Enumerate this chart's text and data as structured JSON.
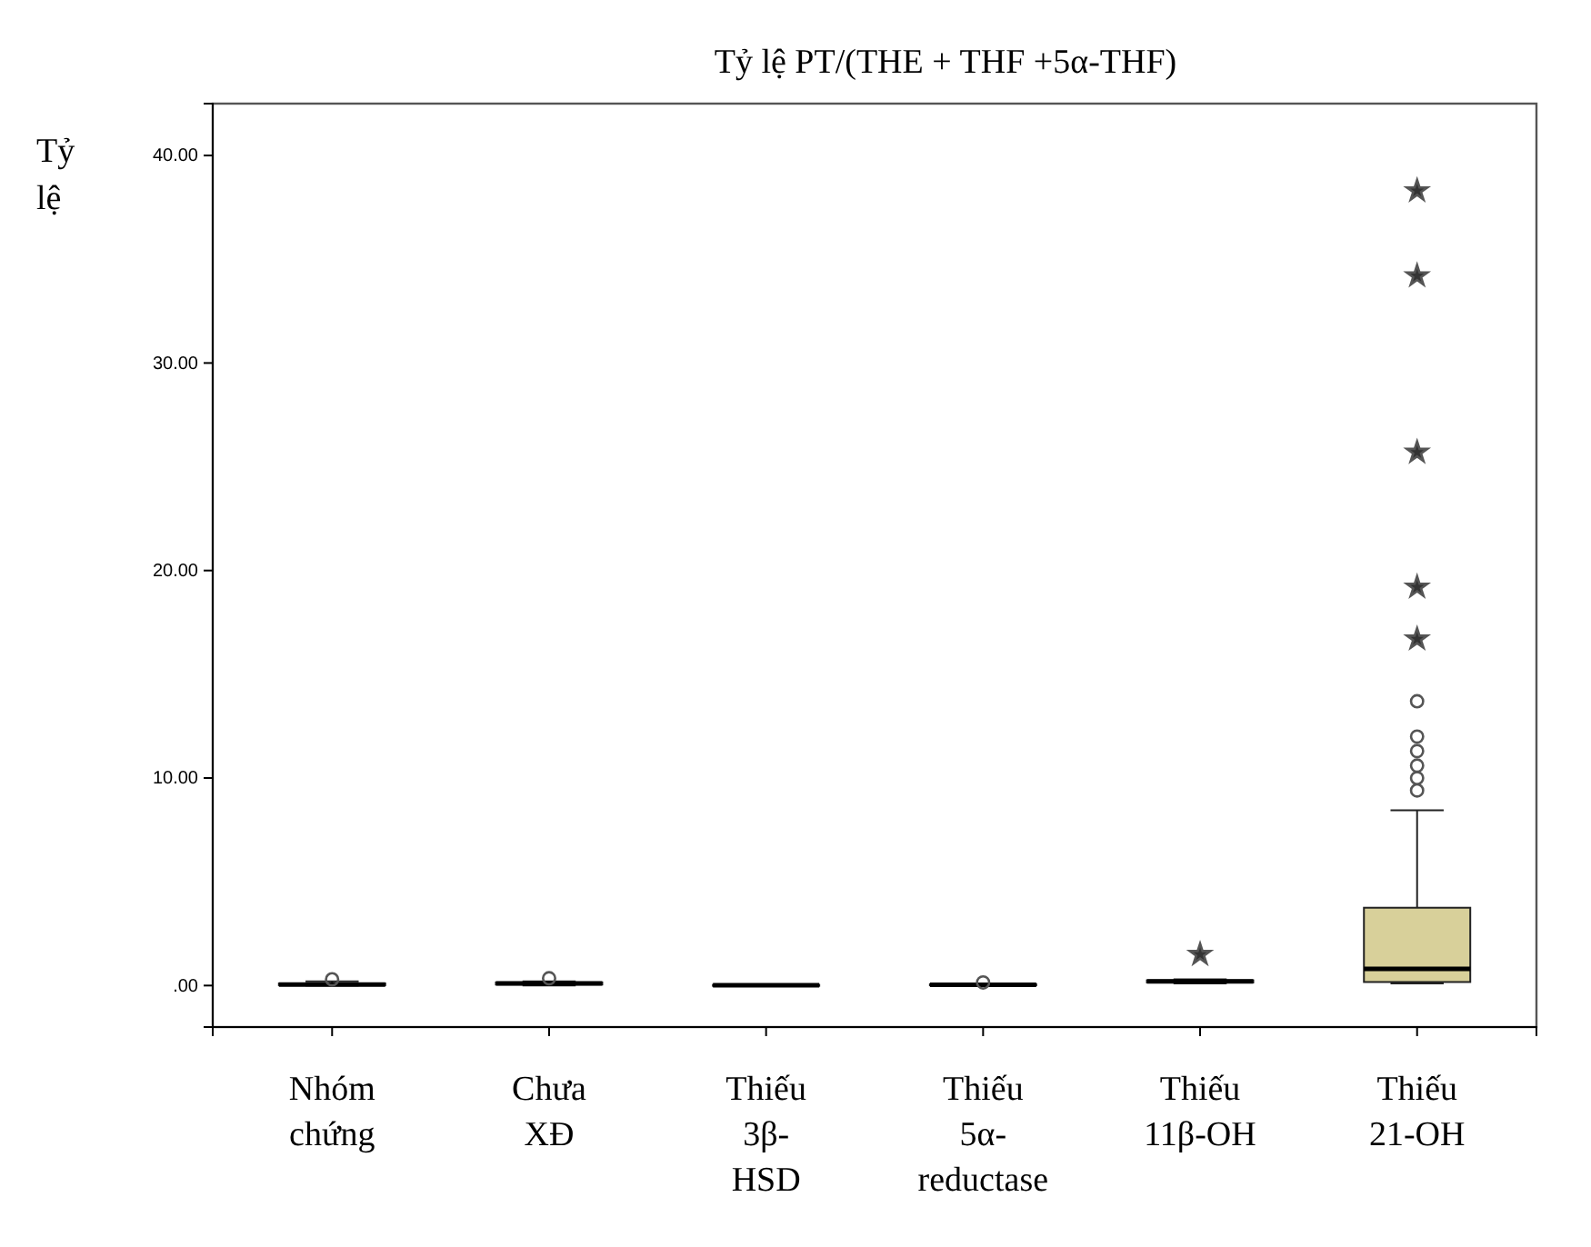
{
  "chart_data": {
    "type": "box",
    "title": "Tỷ lệ PT/(THE + THF +5α-THF)",
    "ylabel": "Tỷ lệ",
    "categories": [
      "Nhóm\nchứng",
      "Chưa\nXĐ",
      "Thiếu\n3β-\nHSD",
      "Thiếu\n5α-\nreductase",
      "Thiếu\n11β-OH",
      "Thiếu\n21-OH"
    ],
    "series": [
      {
        "color": "#d8d09a",
        "boxes": [
          {
            "low": 0,
            "q1": 0.02,
            "median": 0.05,
            "q3": 0.1,
            "high": 0.2,
            "outliers": [
              0.3
            ]
          },
          {
            "low": 0,
            "q1": 0.05,
            "median": 0.1,
            "q3": 0.15,
            "high": 0.2,
            "outliers": [
              0.35
            ]
          },
          {
            "low": 0,
            "q1": 0.01,
            "median": 0.02,
            "q3": 0.03,
            "high": 0.05
          },
          {
            "low": 0,
            "q1": 0.02,
            "median": 0.04,
            "q3": 0.06,
            "high": 0.1,
            "outliers": [
              0.15
            ]
          },
          {
            "low": 0.1,
            "q1": 0.15,
            "median": 0.2,
            "q3": 0.25,
            "high": 0.3,
            "outliers": [
              1.5
            ]
          },
          {
            "low": 0.1,
            "q1": 0.17,
            "median": 0.8,
            "q3": 3.75,
            "high": 8.45,
            "outliers": [
              9.4,
              10.0,
              10.6,
              11.3,
              12.0,
              13.7,
              16.7,
              19.2,
              25.7,
              34.2,
              38.3
            ]
          }
        ]
      }
    ],
    "ylim": [
      -2,
      42.5
    ],
    "yticks": [
      {
        "value": 0,
        "label": ".00"
      },
      {
        "value": 10,
        "label": "10.00"
      },
      {
        "value": 20,
        "label": "20.00"
      },
      {
        "value": 30,
        "label": "30.00"
      },
      {
        "value": 40,
        "label": "40.00"
      }
    ],
    "grid": false
  }
}
